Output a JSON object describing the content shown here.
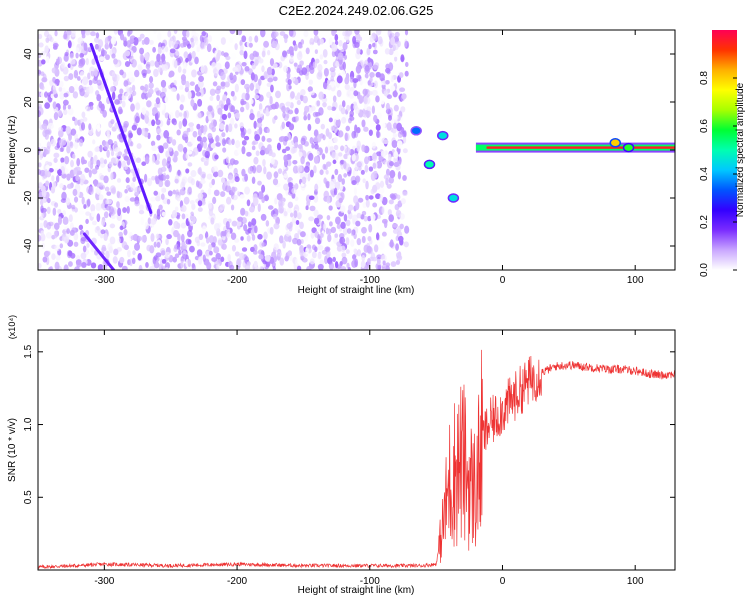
{
  "title": "C2E2.2024.249.02.06.G25",
  "colors": {
    "snr_line": "#ee3333",
    "colorbar": [
      "#ffffff",
      "#c9a6ff",
      "#7a2cff",
      "#3300ff",
      "#0055ff",
      "#00c8ff",
      "#00ffb0",
      "#00ff33",
      "#a8ff00",
      "#ffff00",
      "#ffb000",
      "#ff3300",
      "#ff0055"
    ]
  },
  "chart_data": [
    {
      "type": "heatmap",
      "title": "C2E2.2024.249.02.06.G25",
      "xlabel": "Height of straight line (km)",
      "ylabel": "Frequency (Hz)",
      "xlim": [
        -350,
        130
      ],
      "ylim": [
        -50,
        50
      ],
      "xticks": [
        -300,
        -200,
        -100,
        0,
        100
      ],
      "yticks": [
        -40,
        -20,
        0,
        20,
        40
      ],
      "colorbar": {
        "label": "Normalized spectral amplitude",
        "range": [
          0,
          1
        ],
        "ticks": [
          0.0,
          0.2,
          0.4,
          0.6,
          0.8
        ]
      },
      "features": [
        {
          "kind": "noise",
          "x_range": [
            -350,
            -72
          ],
          "y_range": [
            -50,
            50
          ],
          "amplitude": 0.1
        },
        {
          "kind": "streak",
          "from": [
            -310,
            44
          ],
          "to": [
            -265,
            -26
          ],
          "amplitude": 0.12
        },
        {
          "kind": "streak",
          "from": [
            -315,
            -35
          ],
          "to": [
            -290,
            -52
          ],
          "amplitude": 0.1
        },
        {
          "kind": "carrier",
          "x_range": [
            -20,
            130
          ],
          "y_center": 1,
          "amplitude": 0.95
        },
        {
          "kind": "blob",
          "x": 85,
          "y": 3,
          "amplitude": 0.8
        },
        {
          "kind": "blob",
          "x": 95,
          "y": 1,
          "amplitude": 0.6
        },
        {
          "kind": "blob",
          "x": -37,
          "y": -20,
          "amplitude": 0.45
        },
        {
          "kind": "blob",
          "x": -55,
          "y": -6,
          "amplitude": 0.5
        },
        {
          "kind": "blob",
          "x": -45,
          "y": 6,
          "amplitude": 0.45
        },
        {
          "kind": "blob",
          "x": -65,
          "y": 8,
          "amplitude": 0.35
        }
      ]
    },
    {
      "type": "line",
      "xlabel": "Height of straight line (km)",
      "ylabel": "SNR (10 * v/v)",
      "scale_label": "(x10⁴)",
      "xlim": [
        -350,
        130
      ],
      "ylim": [
        0,
        1.65
      ],
      "xticks": [
        -300,
        -200,
        -100,
        0,
        100
      ],
      "yticks": [
        0.5,
        1.0,
        1.5
      ],
      "ytick_labels": [
        "0.5",
        "1.0",
        "1.5"
      ],
      "series": [
        {
          "x": [
            -350,
            -320,
            -300,
            -250,
            -200,
            -150,
            -100,
            -60,
            -50,
            -45,
            -40,
            -35,
            -30,
            -25,
            -20,
            -15,
            -10,
            -5,
            0,
            10,
            20,
            30,
            40,
            50,
            60,
            70,
            80,
            90,
            100,
            110,
            120,
            130
          ],
          "y": [
            0.02,
            0.03,
            0.04,
            0.03,
            0.04,
            0.03,
            0.03,
            0.03,
            0.04,
            0.3,
            0.6,
            0.7,
            0.75,
            0.6,
            0.55,
            0.9,
            1.0,
            1.05,
            1.1,
            1.2,
            1.3,
            1.36,
            1.4,
            1.41,
            1.4,
            1.39,
            1.38,
            1.38,
            1.37,
            1.35,
            1.34,
            1.35
          ]
        }
      ]
    }
  ]
}
